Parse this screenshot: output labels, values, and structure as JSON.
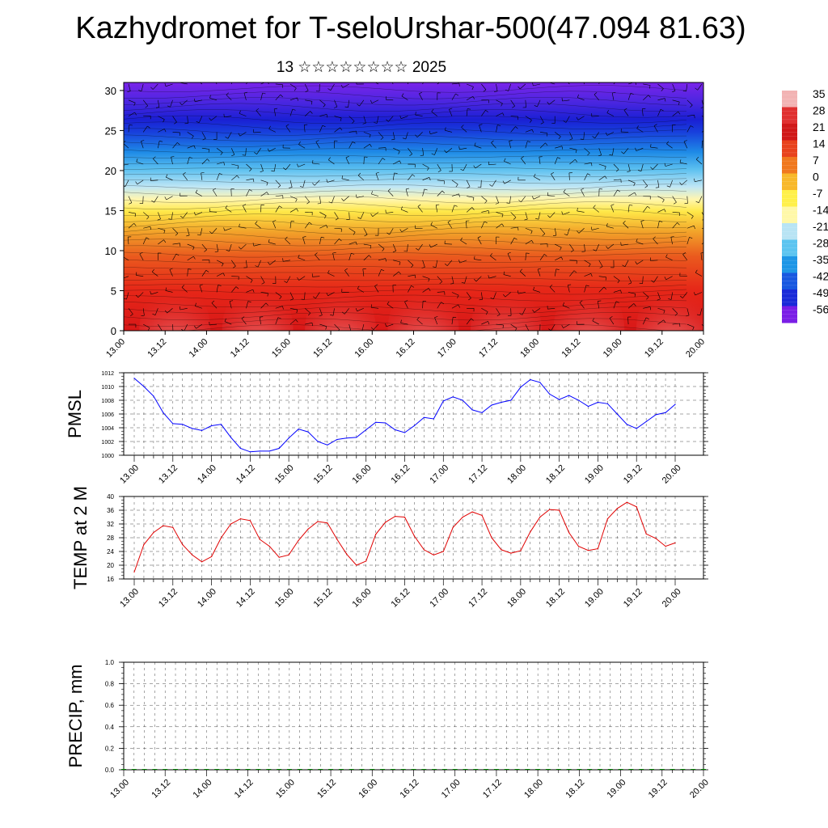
{
  "title": "Kazhydromet for T-seloUrshar-500(47.094 81.63)",
  "subtitle": "13 ☆☆☆☆☆☆☆☆ 2025",
  "colorbar": {
    "labels": [
      "35",
      "28",
      "21",
      "14",
      "7",
      "0",
      "-7",
      "-14",
      "-21",
      "-28",
      "-35",
      "-42",
      "-49",
      "-56"
    ],
    "colors": [
      "#f2b3b3",
      "#e03030",
      "#d01818",
      "#e8421c",
      "#f0781e",
      "#f8b82a",
      "#fff04a",
      "#fff8a8",
      "#b8e4f4",
      "#5cc4f0",
      "#1e96e6",
      "#1858e0",
      "#1a2ad8",
      "#7a1ee6"
    ]
  },
  "chart_data": [
    {
      "type": "heatmap",
      "name": "Temperature cross-section with wind barbs",
      "x_ticks": [
        "13.00",
        "13.12",
        "14.00",
        "14.12",
        "15.00",
        "15.12",
        "16.00",
        "16.12",
        "17.00",
        "17.12",
        "18.00",
        "18.12",
        "19.00",
        "19.12",
        "20.00"
      ],
      "y_ticks": [
        0,
        5,
        10,
        15,
        20,
        25,
        30
      ],
      "ylim": [
        0,
        31
      ],
      "color_scale": [
        35,
        28,
        21,
        14,
        7,
        0,
        -7,
        -14,
        -21,
        -28,
        -35,
        -42,
        -49,
        -56
      ],
      "levels": [
        0,
        2,
        4,
        6,
        8,
        10,
        12,
        14,
        16,
        18,
        20,
        22,
        24,
        26,
        28,
        30
      ],
      "temperature_profile": [
        30,
        24,
        16,
        10,
        3,
        -4,
        -9,
        -14,
        -21,
        -28,
        -36,
        -44,
        -52,
        -58,
        -54,
        -50
      ]
    },
    {
      "type": "line",
      "ylabel": "PMSL",
      "ylim": [
        1000,
        1012
      ],
      "y_ticks": [
        1000,
        1002,
        1004,
        1006,
        1008,
        1010,
        1012
      ],
      "x_ticks": [
        "13.00",
        "13.12",
        "14.00",
        "14.12",
        "15.00",
        "15.12",
        "16.00",
        "16.12",
        "17.00",
        "17.12",
        "18.00",
        "18.12",
        "19.00",
        "19.12",
        "20.00"
      ],
      "color": "#0000ff",
      "values": [
        1011.2,
        1010.0,
        1008.6,
        1006.2,
        1004.6,
        1004.5,
        1003.9,
        1003.6,
        1004.3,
        1004.5,
        1002.6,
        1001.0,
        1000.5,
        1000.6,
        1000.6,
        1001.0,
        1002.5,
        1003.8,
        1003.4,
        1002.0,
        1001.5,
        1002.3,
        1002.5,
        1002.6,
        1003.7,
        1004.8,
        1004.7,
        1003.7,
        1003.3,
        1004.3,
        1005.5,
        1005.3,
        1007.9,
        1008.5,
        1008.0,
        1006.6,
        1006.2,
        1007.3,
        1007.7,
        1008.0,
        1009.9,
        1011.0,
        1010.6,
        1008.9,
        1008.1,
        1008.7,
        1008.0,
        1007.1,
        1007.7,
        1007.5,
        1006.0,
        1004.5,
        1003.9,
        1004.9,
        1005.9,
        1006.2,
        1007.4
      ]
    },
    {
      "type": "line",
      "ylabel": "TEMP at 2 M",
      "ylim": [
        16,
        40
      ],
      "y_ticks": [
        16,
        20,
        24,
        28,
        32,
        36,
        40
      ],
      "x_ticks": [
        "13.00",
        "13.12",
        "14.00",
        "14.12",
        "15.00",
        "15.12",
        "16.00",
        "16.12",
        "17.00",
        "17.12",
        "18.00",
        "18.12",
        "19.00",
        "19.12",
        "20.00"
      ],
      "color": "#e00000",
      "values": [
        18,
        26,
        29.5,
        31.5,
        31,
        26,
        23,
        21,
        22.5,
        28,
        32,
        33.5,
        33,
        27.5,
        25.5,
        22.3,
        23,
        27.2,
        30.5,
        32.7,
        32.3,
        27.5,
        23.2,
        20,
        21.2,
        29,
        32.5,
        34.2,
        34,
        28.5,
        24.5,
        23,
        24,
        31,
        34,
        35.5,
        34.5,
        28,
        24.5,
        23.5,
        24.2,
        29.7,
        34,
        36.2,
        36,
        29.5,
        25.5,
        24.3,
        24.8,
        33.5,
        36.5,
        38.3,
        37,
        29.1,
        27.8,
        25.5,
        26.5
      ]
    },
    {
      "type": "bar",
      "ylabel": "PRECIP, mm",
      "ylim": [
        0,
        1
      ],
      "y_ticks": [
        "0.0",
        "0.2",
        "0.4",
        "0.6",
        "0.8",
        "1.0"
      ],
      "x_ticks": [
        "13.00",
        "13.12",
        "14.00",
        "14.12",
        "15.00",
        "15.12",
        "16.00",
        "16.12",
        "17.00",
        "17.12",
        "18.00",
        "18.12",
        "19.00",
        "19.12",
        "20.00"
      ],
      "color": "#008000",
      "values": [
        0,
        0,
        0,
        0,
        0,
        0,
        0,
        0,
        0,
        0,
        0,
        0,
        0,
        0,
        0,
        0,
        0,
        0,
        0,
        0,
        0,
        0,
        0,
        0,
        0,
        0,
        0,
        0,
        0,
        0,
        0,
        0,
        0,
        0,
        0,
        0,
        0,
        0,
        0,
        0,
        0,
        0,
        0,
        0,
        0,
        0,
        0,
        0,
        0,
        0,
        0,
        0,
        0,
        0,
        0,
        0,
        0
      ]
    }
  ]
}
